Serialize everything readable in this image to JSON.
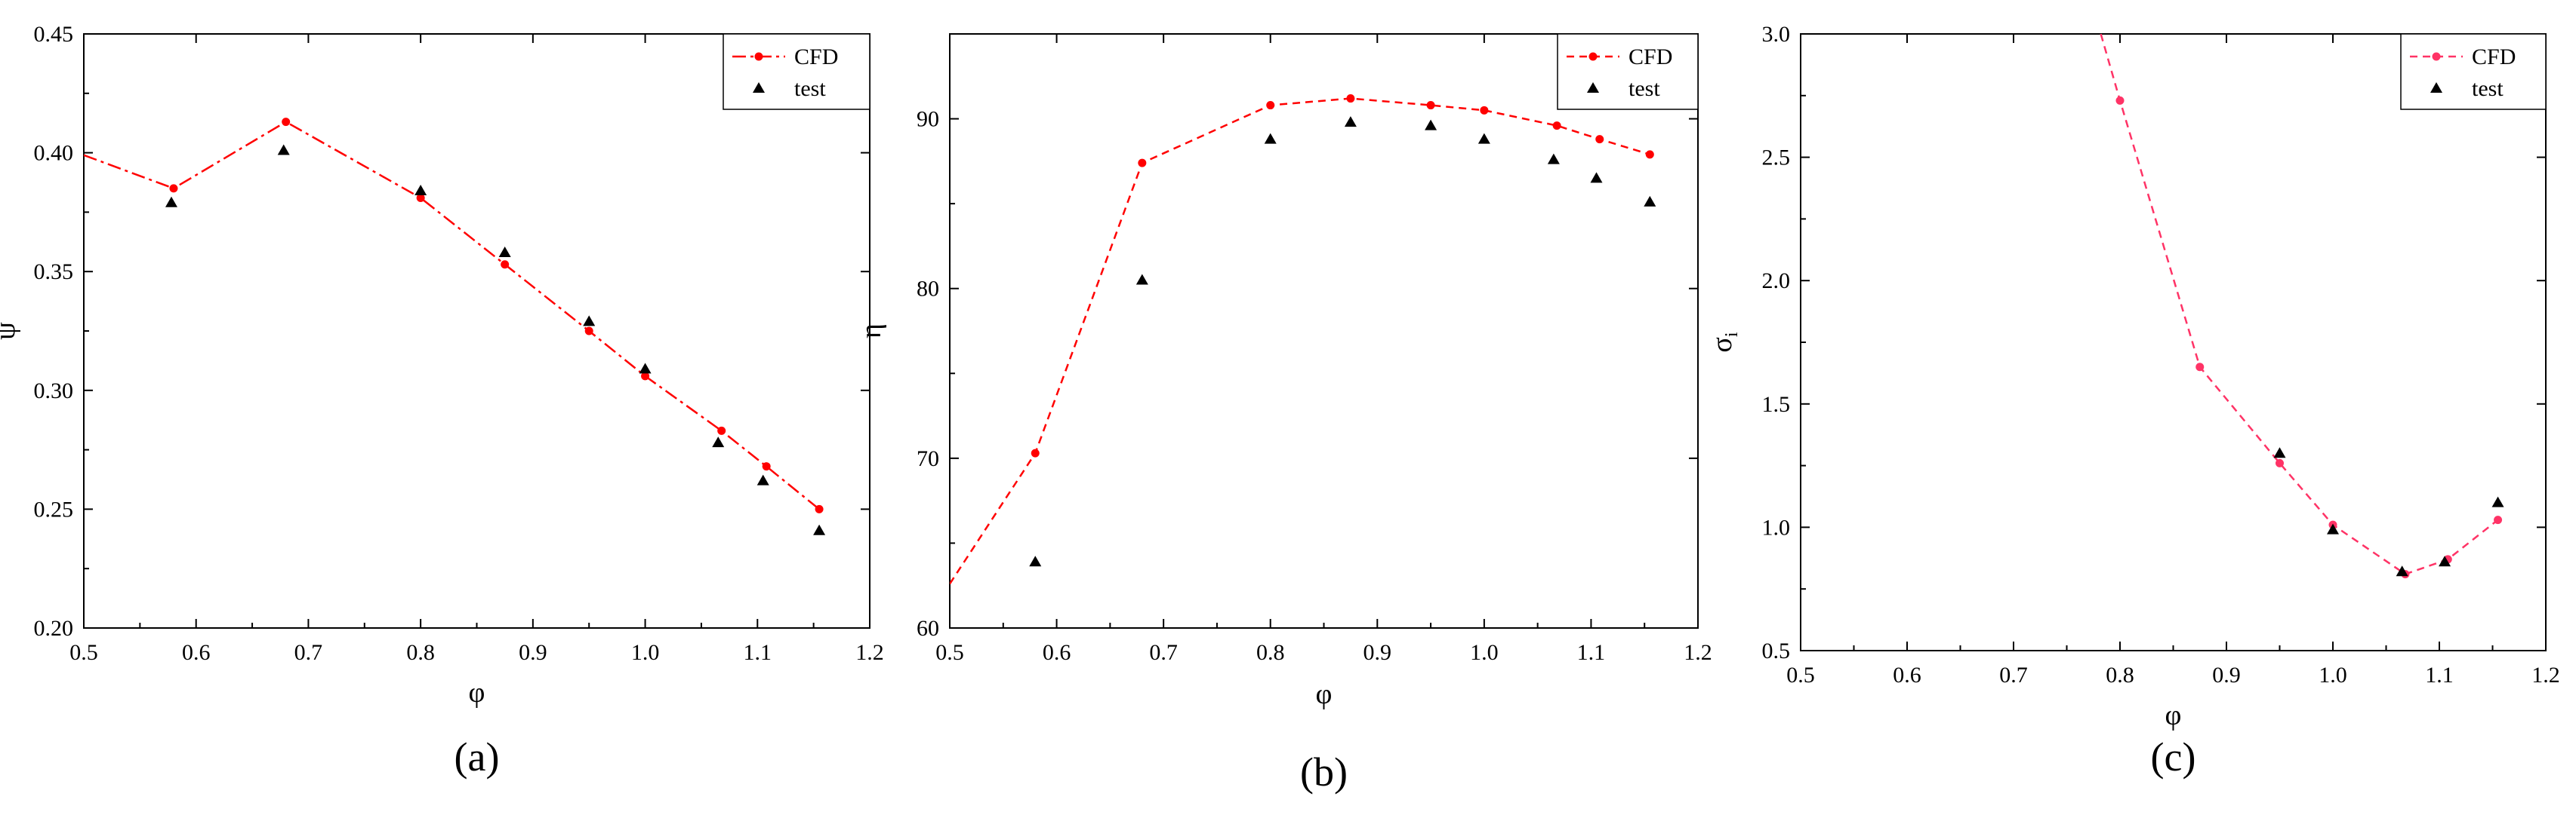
{
  "figure": {
    "panels": [
      "(a)",
      "(b)",
      "(c)"
    ]
  },
  "colors": {
    "cfd_a": "#ff0000",
    "cfd_b": "#ff0000",
    "cfd_c": "#ff3366",
    "test": "#000000",
    "axis": "#000000"
  },
  "chart_data": [
    {
      "type": "line",
      "panel_label": "(a)",
      "xlabel": "φ",
      "ylabel": "ψ",
      "xlim": [
        0.5,
        1.2
      ],
      "ylim": [
        0.2,
        0.45
      ],
      "xticks": [
        0.5,
        0.6,
        0.7,
        0.8,
        0.9,
        1.0,
        1.1,
        1.2
      ],
      "xtick_labels": [
        "0.5",
        "0.6",
        "0.7",
        "0.8",
        "0.9",
        "1.0",
        "1.1",
        "1.2"
      ],
      "yticks": [
        0.2,
        0.25,
        0.3,
        0.35,
        0.4,
        0.45
      ],
      "ytick_labels": [
        "0.20",
        "0.25",
        "0.30",
        "0.35",
        "0.40",
        "0.45"
      ],
      "grid": false,
      "legend_position": "top-right",
      "series": [
        {
          "name": "CFD",
          "style": "dash-dot line with circle markers",
          "color": "#ff0000",
          "line_x": [
            0.5,
            0.58,
            0.68,
            0.8,
            0.875,
            0.95,
            1.0,
            1.068,
            1.108,
            1.155
          ],
          "line_y": [
            0.399,
            0.385,
            0.413,
            0.381,
            0.353,
            0.325,
            0.306,
            0.283,
            0.268,
            0.25
          ],
          "x": [
            0.58,
            0.68,
            0.8,
            0.875,
            0.95,
            1.0,
            1.068,
            1.108,
            1.155
          ],
          "y": [
            0.385,
            0.413,
            0.381,
            0.353,
            0.325,
            0.306,
            0.283,
            0.268,
            0.25
          ]
        },
        {
          "name": "test",
          "style": "triangle markers",
          "color": "#000000",
          "x": [
            0.578,
            0.678,
            0.8,
            0.875,
            0.95,
            1.0,
            1.065,
            1.105,
            1.155
          ],
          "y": [
            0.379,
            0.401,
            0.384,
            0.358,
            0.329,
            0.309,
            0.278,
            0.262,
            0.241
          ]
        }
      ]
    },
    {
      "type": "line",
      "panel_label": "(b)",
      "xlabel": "φ",
      "ylabel": "η",
      "xlim": [
        0.5,
        1.2
      ],
      "ylim": [
        60,
        95
      ],
      "xticks": [
        0.5,
        0.6,
        0.7,
        0.8,
        0.9,
        1.0,
        1.1,
        1.2
      ],
      "xtick_labels": [
        "0.5",
        "0.6",
        "0.7",
        "0.8",
        "0.9",
        "1.0",
        "1.1",
        "1.2"
      ],
      "yticks": [
        60,
        70,
        80,
        90
      ],
      "ytick_labels": [
        "60",
        "70",
        "80",
        "90"
      ],
      "grid": false,
      "legend_position": "top-right",
      "series": [
        {
          "name": "CFD",
          "style": "dashed line with circle markers",
          "color": "#ff0000",
          "line_x": [
            0.5,
            0.58,
            0.68,
            0.8,
            0.875,
            0.95,
            1.0,
            1.068,
            1.108,
            1.155
          ],
          "line_y": [
            62.6,
            70.3,
            87.4,
            90.8,
            91.2,
            90.8,
            90.5,
            89.6,
            88.8,
            87.9
          ],
          "x": [
            0.58,
            0.68,
            0.8,
            0.875,
            0.95,
            1.0,
            1.068,
            1.108,
            1.155
          ],
          "y": [
            70.3,
            87.4,
            90.8,
            91.2,
            90.8,
            90.5,
            89.6,
            88.8,
            87.9
          ]
        },
        {
          "name": "test",
          "style": "triangle markers",
          "color": "#000000",
          "x": [
            0.58,
            0.68,
            0.8,
            0.875,
            0.95,
            1.0,
            1.065,
            1.105,
            1.155
          ],
          "y": [
            63.9,
            80.5,
            88.8,
            89.8,
            89.6,
            88.8,
            87.6,
            86.5,
            85.1
          ]
        }
      ]
    },
    {
      "type": "line",
      "panel_label": "(c)",
      "xlabel": "φ",
      "ylabel": "σ",
      "ylabel_sub": "i",
      "xlim": [
        0.5,
        1.2
      ],
      "ylim": [
        0.5,
        3.0
      ],
      "xticks": [
        0.5,
        0.6,
        0.7,
        0.8,
        0.9,
        1.0,
        1.1,
        1.2
      ],
      "xtick_labels": [
        "0.5",
        "0.6",
        "0.7",
        "0.8",
        "0.9",
        "1.0",
        "1.1",
        "1.2"
      ],
      "yticks": [
        0.5,
        1.0,
        1.5,
        2.0,
        2.5,
        3.0
      ],
      "ytick_labels": [
        "0.5",
        "1.0",
        "1.5",
        "2.0",
        "2.5",
        "3.0"
      ],
      "grid": false,
      "legend_position": "top-right",
      "series": [
        {
          "name": "CFD",
          "style": "dashed line with circle markers",
          "color": "#ff3366",
          "line_x": [
            0.782,
            0.8,
            0.875,
            0.95,
            1.0,
            1.068,
            1.108,
            1.155
          ],
          "line_y": [
            3.0,
            2.73,
            1.65,
            1.26,
            1.01,
            0.81,
            0.87,
            1.03
          ],
          "x": [
            0.8,
            0.875,
            0.95,
            1.0,
            1.068,
            1.108,
            1.155
          ],
          "y": [
            2.73,
            1.65,
            1.26,
            1.01,
            0.81,
            0.87,
            1.03
          ]
        },
        {
          "name": "test",
          "style": "triangle markers",
          "color": "#000000",
          "x": [
            0.95,
            1.0,
            1.065,
            1.105,
            1.155
          ],
          "y": [
            1.3,
            0.99,
            0.82,
            0.86,
            1.1
          ]
        }
      ]
    }
  ]
}
